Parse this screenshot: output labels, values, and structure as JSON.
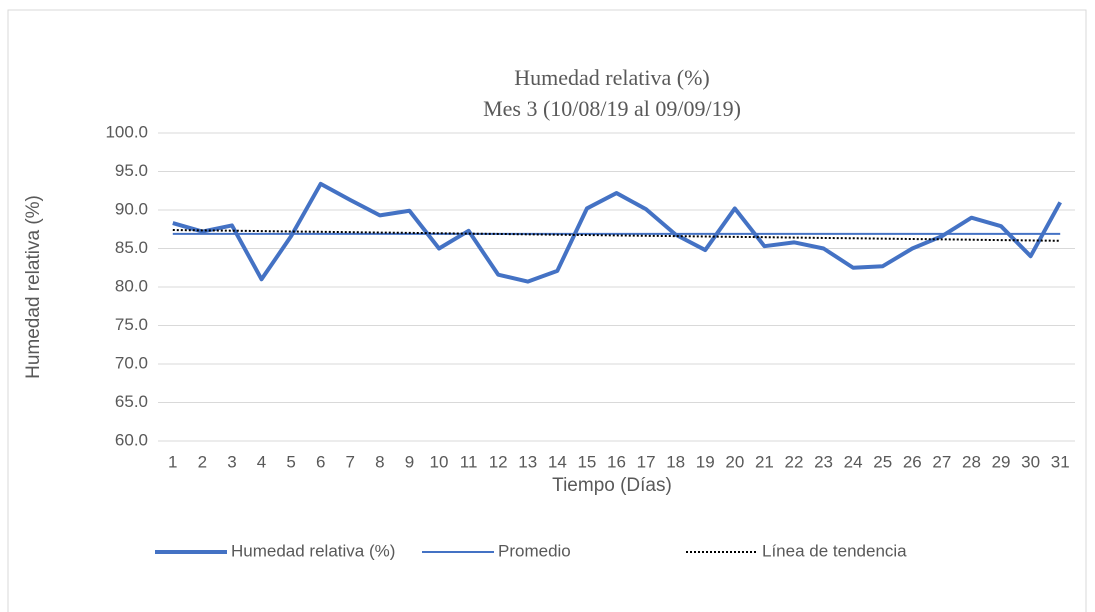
{
  "chart_data": {
    "type": "line",
    "title": "Humedad relativa (%)",
    "subtitle": "Mes 3 (10/08/19 al 09/09/19)",
    "x_label": "Tiempo (Días)",
    "y_label": "Humedad relativa (%)",
    "categories": [
      "1",
      "2",
      "3",
      "4",
      "5",
      "6",
      "7",
      "8",
      "9",
      "10",
      "11",
      "12",
      "13",
      "14",
      "15",
      "16",
      "17",
      "18",
      "19",
      "20",
      "21",
      "22",
      "23",
      "24",
      "25",
      "26",
      "27",
      "28",
      "29",
      "30",
      "31"
    ],
    "series": [
      {
        "name": "Humedad relativa (%)",
        "color": "#4472c4",
        "width": 4,
        "dash": "solid",
        "values": [
          88.3,
          87.2,
          88.0,
          81.0,
          86.6,
          93.4,
          91.3,
          89.3,
          89.9,
          85.0,
          87.3,
          81.6,
          80.7,
          82.1,
          90.2,
          92.2,
          90.1,
          86.8,
          84.8,
          90.2,
          85.3,
          85.8,
          85.0,
          82.5,
          82.7,
          85.0,
          86.6,
          89.0,
          87.9,
          84.0,
          91.0
        ]
      },
      {
        "name": "Promedio",
        "color": "#4472c4",
        "width": 2,
        "dash": "solid",
        "values": [
          86.9,
          86.9,
          86.9,
          86.9,
          86.9,
          86.9,
          86.9,
          86.9,
          86.9,
          86.9,
          86.9,
          86.9,
          86.9,
          86.9,
          86.9,
          86.9,
          86.9,
          86.9,
          86.9,
          86.9,
          86.9,
          86.9,
          86.9,
          86.9,
          86.9,
          86.9,
          86.9,
          86.9,
          86.9,
          86.9,
          86.9
        ]
      },
      {
        "name": "Línea de tendencia",
        "color": "#000000",
        "width": 2,
        "dash": "dotted",
        "values": [
          87.4,
          87.35,
          87.31,
          87.26,
          87.21,
          87.17,
          87.12,
          87.07,
          87.03,
          86.98,
          86.93,
          86.89,
          86.84,
          86.79,
          86.75,
          86.7,
          86.65,
          86.61,
          86.56,
          86.51,
          86.47,
          86.42,
          86.37,
          86.33,
          86.28,
          86.23,
          86.19,
          86.14,
          86.09,
          86.05,
          86.0
        ]
      }
    ],
    "ylim": [
      60,
      100
    ],
    "yticks": [
      {
        "value": 60,
        "label": "60.0"
      },
      {
        "value": 65,
        "label": "65.0"
      },
      {
        "value": 70,
        "label": "70.0"
      },
      {
        "value": 75,
        "label": "75.0"
      },
      {
        "value": 80,
        "label": "80.0"
      },
      {
        "value": 85,
        "label": "85.0"
      },
      {
        "value": 90,
        "label": "90.0"
      },
      {
        "value": 95,
        "label": "95.0"
      },
      {
        "value": 100,
        "label": "100.0"
      }
    ],
    "grid": true,
    "legend": "bottom"
  }
}
